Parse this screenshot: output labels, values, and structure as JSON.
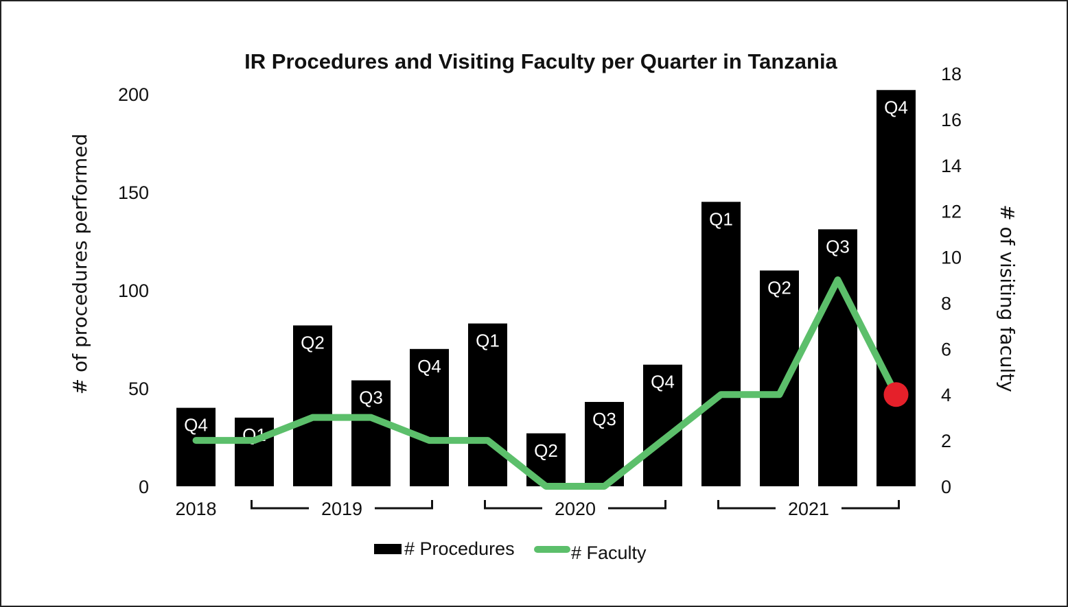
{
  "chart_data": {
    "type": "bar",
    "title": "IR Procedures and Visiting Faculty per Quarter in Tanzania",
    "xlabel": "",
    "ylabel": "# of procedures performed",
    "y2label": "# of visiting faculty",
    "ylim": [
      0,
      200
    ],
    "y2lim": [
      0,
      18
    ],
    "yticks": [
      "0",
      "50",
      "100",
      "150",
      "200"
    ],
    "y2ticks": [
      "0",
      "2",
      "4",
      "6",
      "8",
      "10",
      "12",
      "14",
      "16",
      "18"
    ],
    "categories": [
      "Q4",
      "Q1",
      "Q2",
      "Q3",
      "Q4",
      "Q1",
      "Q2",
      "Q3",
      "Q4",
      "Q1",
      "Q2",
      "Q3",
      "Q4"
    ],
    "year_groups": [
      {
        "label": "2018",
        "start": 0,
        "end": 0
      },
      {
        "label": "2019",
        "start": 1,
        "end": 4
      },
      {
        "label": "2020",
        "start": 5,
        "end": 8
      },
      {
        "label": "2021",
        "start": 9,
        "end": 12
      }
    ],
    "series": [
      {
        "name": "# Procedures",
        "type": "bar",
        "axis": "left",
        "color": "#000000",
        "values": [
          40,
          35,
          82,
          54,
          70,
          83,
          27,
          43,
          62,
          145,
          110,
          131,
          202
        ]
      },
      {
        "name": "# Faculty",
        "type": "line",
        "axis": "right",
        "color": "#5cbf6b",
        "values": [
          2,
          2,
          3,
          3,
          2,
          2,
          0,
          0,
          2,
          4,
          4,
          9,
          4
        ]
      }
    ],
    "highlight": {
      "series": "# Faculty",
      "index": 12,
      "color": "#e5202a"
    },
    "grid": false,
    "legend": "bottom-center"
  }
}
